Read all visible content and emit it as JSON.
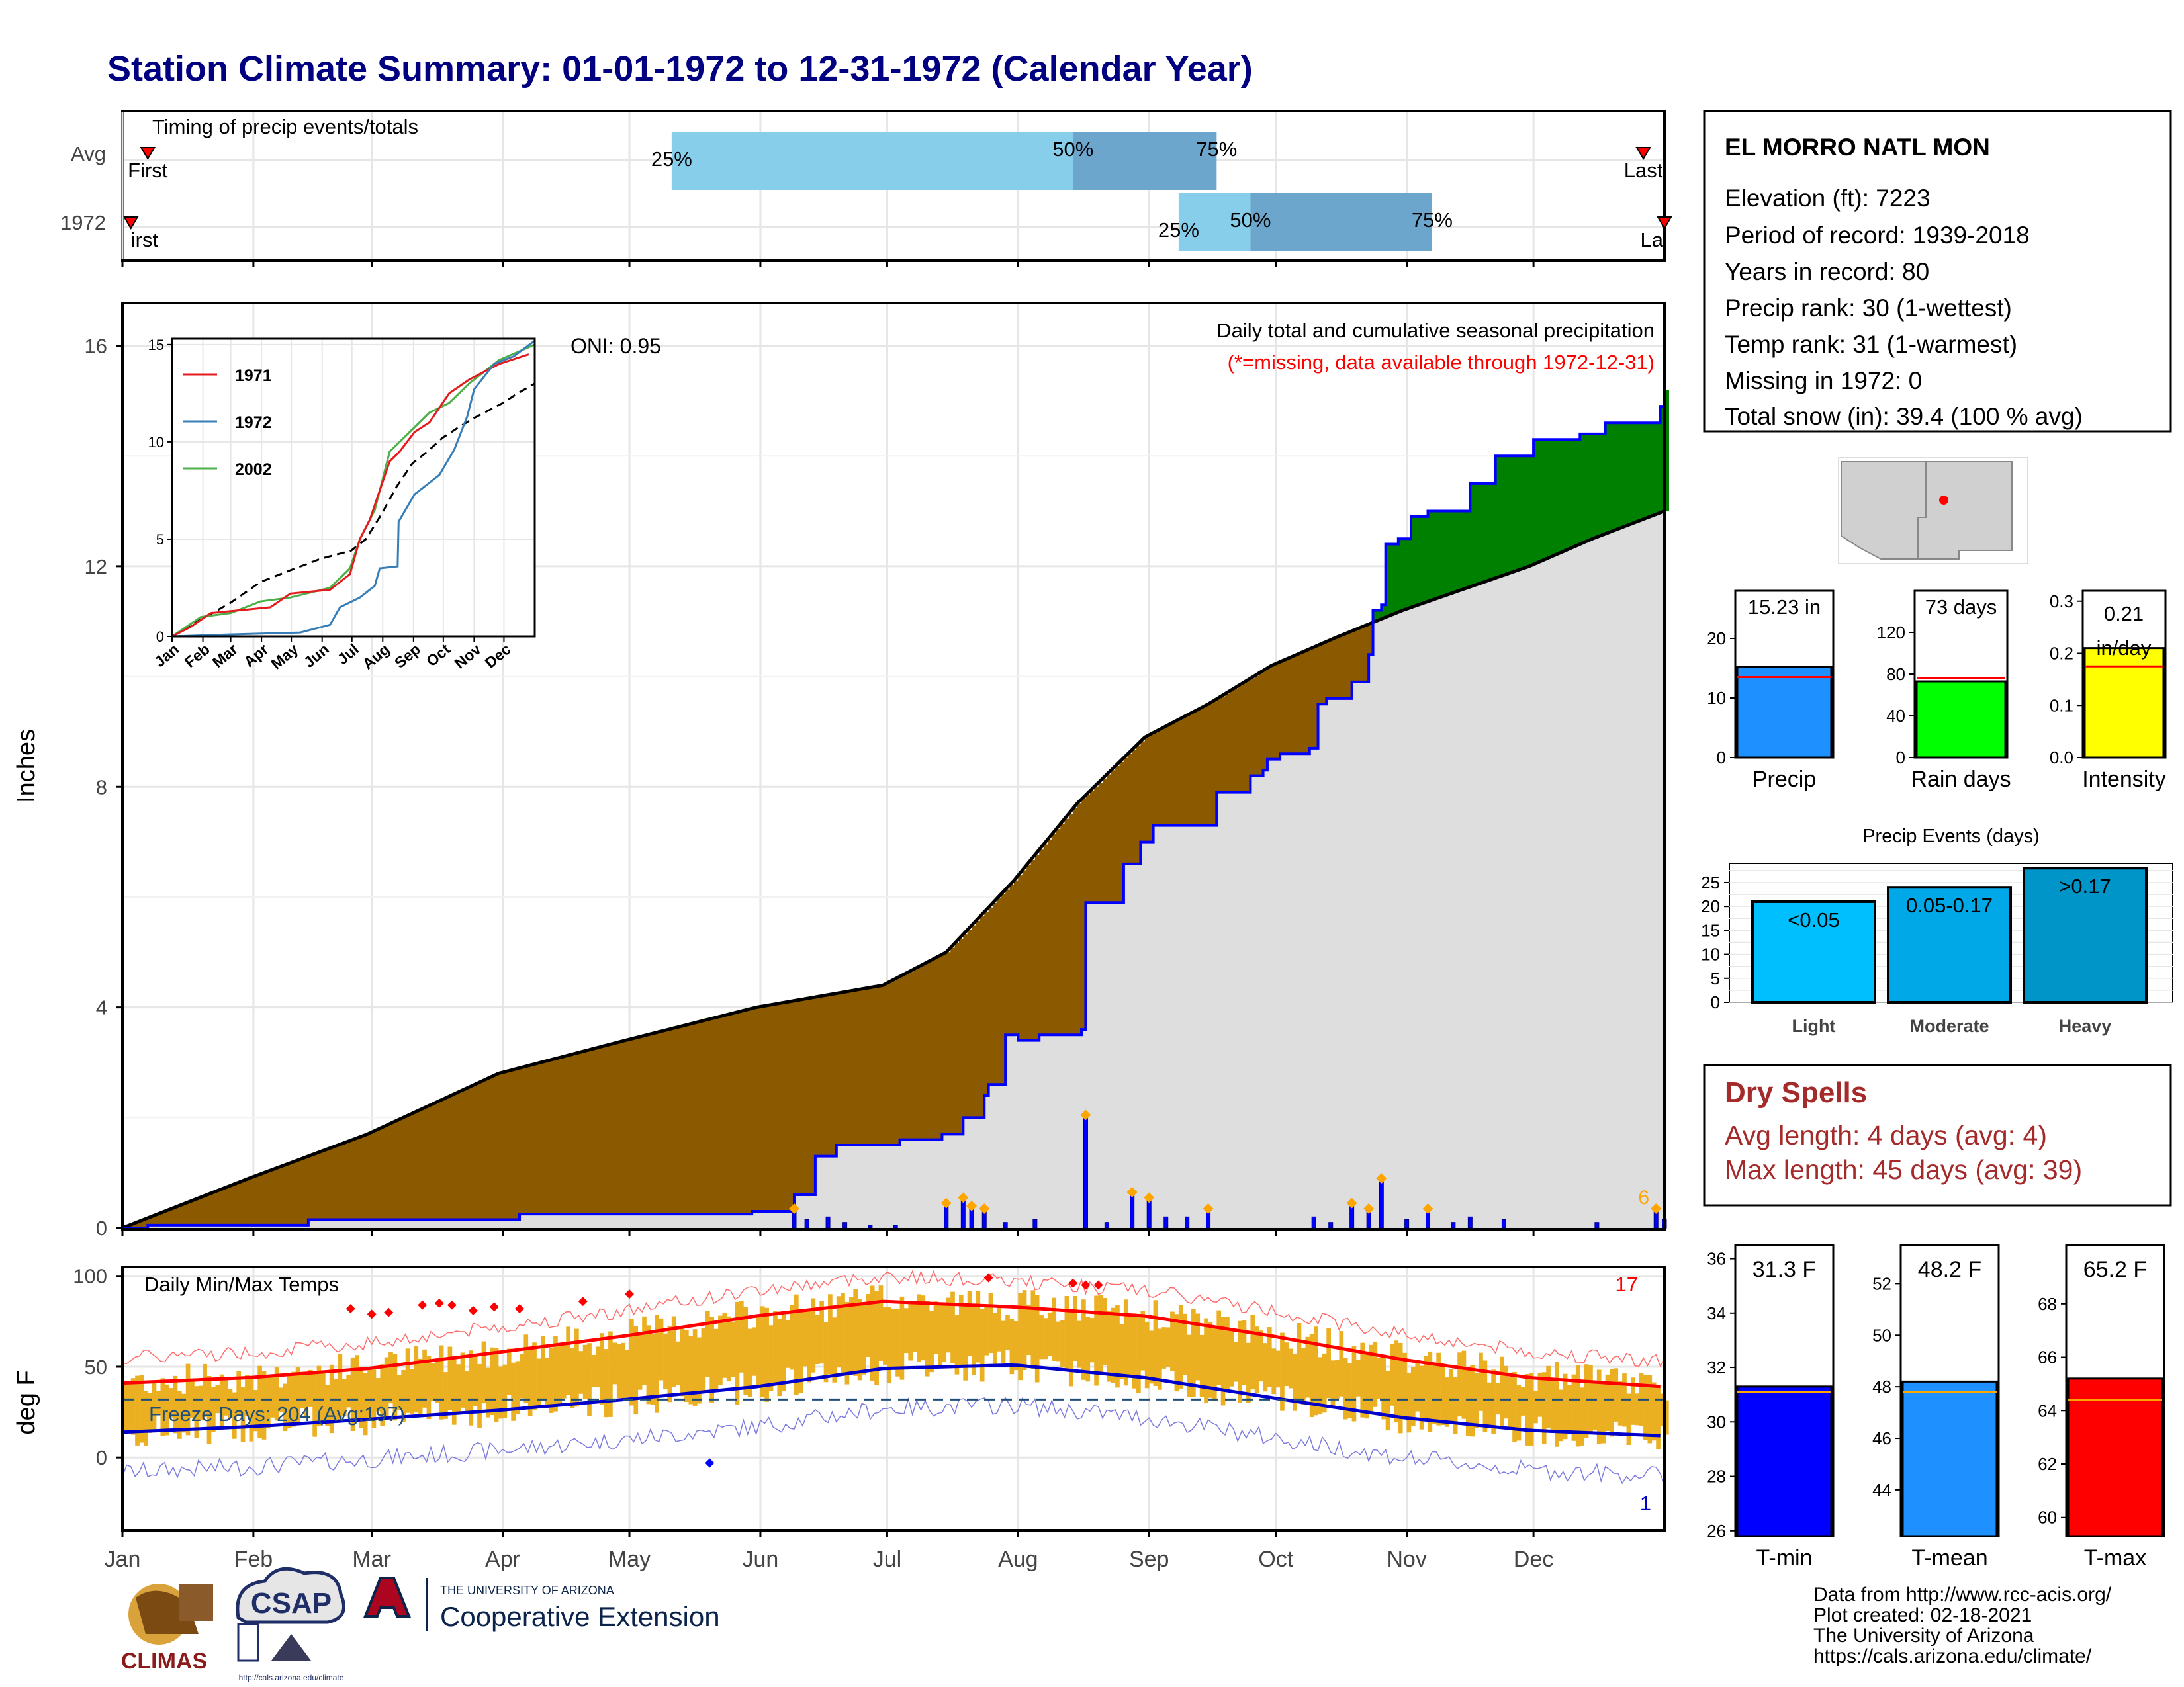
{
  "title": "Station Climate Summary: 01-01-1972 to 12-31-1972 (Calendar Year)",
  "colors": {
    "title": "#000080",
    "brown_fill": "#8B5A00",
    "green_fill": "#008000",
    "gray_fill": "#DEDEDE",
    "blue_line": "#0000FF",
    "precip_bar": "#1E90FF",
    "rain_bar": "#00FF00",
    "intensity_bar": "#FFFF00",
    "temp_bar": "#EBB022",
    "tmax_line": "#FF0000",
    "tmin_line": "#0000CD",
    "dry_spells_text": "#A52A2A",
    "light_event": "#00BFFF",
    "moderate_event": "#00A8E8",
    "heavy_event": "#0095C8"
  },
  "timing": {
    "label": "Timing of precip events/totals",
    "rows": [
      "Avg",
      "1972"
    ],
    "avg": {
      "first": "First",
      "last": "Last",
      "q25": "25%",
      "q50": "50%",
      "q75": "75%",
      "q25_doy": 131,
      "q50_doy": 226,
      "q75_doy": 260,
      "first_doy": 7,
      "last_doy": 361
    },
    "y1972": {
      "first": "irst",
      "last": "La",
      "q25": "25%",
      "q50": "50%",
      "q75": "75%",
      "q25_doy": 251,
      "q50_doy": 268,
      "q75_doy": 311,
      "first_doy": 3,
      "last_doy": 366
    }
  },
  "station": {
    "name": "EL MORRO NATL MON",
    "lines": [
      "Elevation (ft): 7223",
      "Period of record: 1939-2018",
      "Years in record: 80",
      "Precip rank: 30 (1-wettest)",
      "Temp rank: 31 (1-warmest)",
      "Missing in 1972: 0",
      "Total snow (in): 39.4 (100 % avg)"
    ]
  },
  "main_precip": {
    "ylabel": "Inches",
    "yticks": [
      "0",
      "4",
      "8",
      "12",
      "16"
    ],
    "caption": "Daily total and cumulative seasonal precipitation",
    "missing_note": "(*=missing, data available through 1972-12-31)",
    "oni": "ONI: 0.95",
    "corner_count": "6",
    "avg_cumulative": [
      [
        1,
        0
      ],
      [
        31,
        0.9
      ],
      [
        59,
        1.7
      ],
      [
        90,
        2.8
      ],
      [
        120,
        3.4
      ],
      [
        151,
        4.0
      ],
      [
        181,
        4.4
      ],
      [
        196,
        5.0
      ],
      [
        212,
        6.3
      ],
      [
        227,
        7.7
      ],
      [
        243,
        8.9
      ],
      [
        258,
        9.5
      ],
      [
        273,
        10.2
      ],
      [
        288,
        10.7
      ],
      [
        304,
        11.2
      ],
      [
        319,
        11.6
      ],
      [
        334,
        12.0
      ],
      [
        349,
        12.5
      ],
      [
        366,
        13.0
      ]
    ],
    "cum_1972": [
      [
        1,
        0
      ],
      [
        7,
        0.05
      ],
      [
        45,
        0.15
      ],
      [
        95,
        0.25
      ],
      [
        150,
        0.3
      ],
      [
        160,
        0.6
      ],
      [
        165,
        1.3
      ],
      [
        170,
        1.5
      ],
      [
        185,
        1.6
      ],
      [
        195,
        1.7
      ],
      [
        200,
        2.0
      ],
      [
        205,
        2.4
      ],
      [
        206,
        2.6
      ],
      [
        210,
        3.5
      ],
      [
        213,
        3.4
      ],
      [
        218,
        3.5
      ],
      [
        228,
        3.6
      ],
      [
        229,
        5.9
      ],
      [
        238,
        6.6
      ],
      [
        242,
        7.0
      ],
      [
        245,
        7.3
      ],
      [
        260,
        7.9
      ],
      [
        268,
        8.2
      ],
      [
        271,
        8.3
      ],
      [
        272,
        8.5
      ],
      [
        275,
        8.6
      ],
      [
        282,
        8.7
      ],
      [
        284,
        9.5
      ],
      [
        286,
        9.6
      ],
      [
        290,
        9.6
      ],
      [
        292,
        9.9
      ],
      [
        296,
        10.4
      ],
      [
        297,
        11.2
      ],
      [
        299,
        11.3
      ],
      [
        300,
        12.4
      ],
      [
        303,
        12.5
      ],
      [
        306,
        12.9
      ],
      [
        310,
        13.0
      ],
      [
        320,
        13.5
      ],
      [
        326,
        14.0
      ],
      [
        335,
        14.3
      ],
      [
        346,
        14.4
      ],
      [
        352,
        14.6
      ],
      [
        365,
        14.9
      ],
      [
        366,
        15.2
      ]
    ],
    "daily_bars_doy": [
      [
        160,
        0.3
      ],
      [
        163,
        0.15
      ],
      [
        168,
        0.2
      ],
      [
        172,
        0.1
      ],
      [
        178,
        0.05
      ],
      [
        184,
        0.05
      ],
      [
        196,
        0.4
      ],
      [
        200,
        0.5
      ],
      [
        202,
        0.35
      ],
      [
        205,
        0.3
      ],
      [
        210,
        0.1
      ],
      [
        217,
        0.15
      ],
      [
        229,
        2.0
      ],
      [
        234,
        0.1
      ],
      [
        240,
        0.6
      ],
      [
        244,
        0.5
      ],
      [
        248,
        0.2
      ],
      [
        253,
        0.2
      ],
      [
        258,
        0.3
      ],
      [
        283,
        0.2
      ],
      [
        287,
        0.1
      ],
      [
        292,
        0.4
      ],
      [
        296,
        0.3
      ],
      [
        299,
        0.85
      ],
      [
        305,
        0.15
      ],
      [
        310,
        0.3
      ],
      [
        316,
        0.1
      ],
      [
        320,
        0.2
      ],
      [
        328,
        0.15
      ],
      [
        350,
        0.1
      ],
      [
        364,
        0.3
      ],
      [
        366,
        0.15
      ]
    ]
  },
  "inset": {
    "yticks": [
      "0",
      "5",
      "10",
      "15"
    ],
    "months": [
      "Jan",
      "Feb",
      "Mar",
      "Apr",
      "May",
      "Jun",
      "Jul",
      "Aug",
      "Sep",
      "Oct",
      "Nov",
      "Dec"
    ],
    "legend": [
      "1971",
      "1972",
      "2002"
    ],
    "series_1971": [
      [
        1,
        0
      ],
      [
        20,
        0.5
      ],
      [
        40,
        1.2
      ],
      [
        60,
        1.3
      ],
      [
        80,
        1.4
      ],
      [
        100,
        1.5
      ],
      [
        120,
        2.2
      ],
      [
        160,
        2.4
      ],
      [
        180,
        3.2
      ],
      [
        190,
        5.0
      ],
      [
        200,
        6.0
      ],
      [
        210,
        7.5
      ],
      [
        220,
        9.0
      ],
      [
        230,
        9.5
      ],
      [
        245,
        10.5
      ],
      [
        260,
        11.0
      ],
      [
        280,
        12.5
      ],
      [
        300,
        13.2
      ],
      [
        330,
        14.0
      ],
      [
        360,
        14.5
      ]
    ],
    "series_1972": [
      [
        1,
        0
      ],
      [
        60,
        0.1
      ],
      [
        130,
        0.2
      ],
      [
        160,
        0.6
      ],
      [
        170,
        1.5
      ],
      [
        190,
        2.0
      ],
      [
        205,
        2.6
      ],
      [
        210,
        3.5
      ],
      [
        228,
        3.6
      ],
      [
        229,
        5.9
      ],
      [
        245,
        7.3
      ],
      [
        270,
        8.3
      ],
      [
        285,
        9.6
      ],
      [
        298,
        11.3
      ],
      [
        305,
        12.7
      ],
      [
        325,
        14.0
      ],
      [
        345,
        14.4
      ],
      [
        366,
        15.2
      ]
    ],
    "series_2002": [
      [
        1,
        0
      ],
      [
        30,
        1.0
      ],
      [
        60,
        1.2
      ],
      [
        90,
        1.8
      ],
      [
        120,
        2.0
      ],
      [
        160,
        2.5
      ],
      [
        180,
        3.5
      ],
      [
        190,
        5.0
      ],
      [
        205,
        6.5
      ],
      [
        220,
        9.5
      ],
      [
        240,
        10.5
      ],
      [
        260,
        11.5
      ],
      [
        280,
        12.0
      ],
      [
        300,
        13.0
      ],
      [
        330,
        14.2
      ],
      [
        366,
        15.0
      ]
    ],
    "series_avg": [
      [
        1,
        0
      ],
      [
        31,
        0.9
      ],
      [
        59,
        1.7
      ],
      [
        90,
        2.8
      ],
      [
        120,
        3.4
      ],
      [
        151,
        4.0
      ],
      [
        181,
        4.4
      ],
      [
        196,
        5.0
      ],
      [
        212,
        6.3
      ],
      [
        227,
        7.7
      ],
      [
        243,
        8.9
      ],
      [
        258,
        9.5
      ],
      [
        273,
        10.2
      ],
      [
        288,
        10.7
      ],
      [
        304,
        11.2
      ],
      [
        319,
        11.6
      ],
      [
        334,
        12.0
      ],
      [
        349,
        12.5
      ],
      [
        366,
        13.0
      ]
    ]
  },
  "bars_small": {
    "precip": {
      "label": "Precip",
      "value_text": "15.23 in",
      "value": 15.23,
      "avg": 13.5,
      "ylim": [
        0,
        28
      ],
      "yticks": [
        "0",
        "10",
        "20"
      ]
    },
    "raindays": {
      "label": "Rain days",
      "value_text": "73 days",
      "value": 73,
      "avg": 76,
      "ylim": [
        0,
        160
      ],
      "yticks": [
        "0",
        "40",
        "80",
        "120"
      ]
    },
    "intensity": {
      "label": "Intensity",
      "value_text_1": "0.21",
      "value_text_2": "in/day",
      "value": 0.21,
      "avg": 0.175,
      "ylim": [
        0,
        0.32
      ],
      "yticks": [
        "0.0",
        "0.1",
        "0.2",
        "0.3"
      ]
    }
  },
  "precip_events": {
    "title": "Precip Events (days)",
    "yticks": [
      "0",
      "5",
      "10",
      "15",
      "20",
      "25"
    ],
    "categories": [
      "Light",
      "Moderate",
      "Heavy"
    ],
    "bar_labels": [
      "<0.05",
      "0.05-0.17",
      ">0.17"
    ],
    "values": [
      21,
      24,
      28
    ],
    "ylim": [
      0,
      29
    ]
  },
  "dry_spells": {
    "title": "Dry Spells",
    "avg_length": "Avg length: 4 days (avg: 4)",
    "max_length": "Max length: 45 days (avg: 39)"
  },
  "temps": {
    "label": "Daily Min/Max Temps",
    "ylabel": "deg F",
    "yticks": [
      "0",
      "50",
      "100"
    ],
    "freeze_text": "Freeze Days: 204 (Avg:197)",
    "count_hi": "17",
    "count_lo": "1",
    "months": [
      "Jan",
      "Feb",
      "Mar",
      "Apr",
      "May",
      "Jun",
      "Jul",
      "Aug",
      "Sep",
      "Oct",
      "Nov",
      "Dec"
    ],
    "avg_tmax": [
      [
        1,
        41
      ],
      [
        31,
        44
      ],
      [
        59,
        49
      ],
      [
        90,
        58
      ],
      [
        120,
        67
      ],
      [
        151,
        78
      ],
      [
        181,
        86
      ],
      [
        212,
        83
      ],
      [
        243,
        78
      ],
      [
        273,
        67
      ],
      [
        304,
        54
      ],
      [
        334,
        44
      ],
      [
        366,
        39
      ]
    ],
    "avg_tmin": [
      [
        1,
        14
      ],
      [
        31,
        17
      ],
      [
        59,
        21
      ],
      [
        90,
        26
      ],
      [
        120,
        32
      ],
      [
        151,
        39
      ],
      [
        181,
        49
      ],
      [
        212,
        51
      ],
      [
        243,
        44
      ],
      [
        273,
        33
      ],
      [
        304,
        22
      ],
      [
        334,
        15
      ],
      [
        366,
        12
      ]
    ]
  },
  "temp_bars": {
    "tmin": {
      "label": "T-min",
      "value_text": "31.3 F",
      "value": 31.3,
      "avg": 31.1,
      "ylim": [
        25.8,
        36.5
      ],
      "yticks": [
        "26",
        "28",
        "30",
        "32",
        "34",
        "36"
      ]
    },
    "tmean": {
      "label": "T-mean",
      "value_text": "48.2 F",
      "value": 48.2,
      "avg": 47.8,
      "ylim": [
        42.2,
        53.5
      ],
      "yticks": [
        "44",
        "46",
        "48",
        "50",
        "52"
      ]
    },
    "tmax": {
      "label": "T-max",
      "value_text": "65.2 F",
      "value": 65.2,
      "avg": 64.4,
      "ylim": [
        59.3,
        70.2
      ],
      "yticks": [
        "60",
        "62",
        "64",
        "66",
        "68"
      ]
    }
  },
  "footer": [
    "Data from http://www.rcc-acis.org/",
    "Plot created: 02-18-2021",
    "The University of Arizona",
    "https://cals.arizona.edu/climate/"
  ],
  "logos": {
    "climas": "CLIMAS",
    "csap": "CSAP",
    "csap_url": "http://cals.arizona.edu/climate",
    "ua_top": "THE UNIVERSITY OF ARIZONA",
    "ua_bottom": "Cooperative Extension"
  }
}
